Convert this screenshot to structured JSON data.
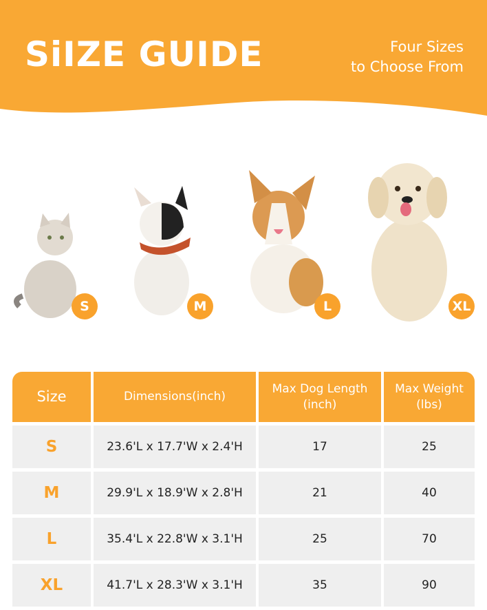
{
  "header": {
    "title": "SiIZE GUIDE",
    "subtitle_line1": "Four Sizes",
    "subtitle_line2": "to Choose From"
  },
  "colors": {
    "accent": "#F9A834",
    "row_bg": "#EFEFEF",
    "text": "#222222"
  },
  "animals": [
    {
      "kind": "cat",
      "badge": "S"
    },
    {
      "kind": "french-bulldog",
      "badge": "M"
    },
    {
      "kind": "corgi",
      "badge": "L"
    },
    {
      "kind": "golden-retriever",
      "badge": "XL"
    }
  ],
  "table": {
    "headers": [
      "Size",
      "Dimensions(inch)",
      "Max Dog Length (inch)",
      "Max Weight (lbs)"
    ],
    "rows": [
      {
        "size": "S",
        "dimensions": "23.6'L x 17.7'W x 2.4'H",
        "length": "17",
        "weight": "25"
      },
      {
        "size": "M",
        "dimensions": "29.9'L x 18.9'W x 2.8'H",
        "length": "21",
        "weight": "40"
      },
      {
        "size": "L",
        "dimensions": "35.4'L x 22.8'W x 3.1'H",
        "length": "25",
        "weight": "70"
      },
      {
        "size": "XL",
        "dimensions": "41.7'L x 28.3'W x 3.1'H",
        "length": "35",
        "weight": "90"
      }
    ]
  }
}
